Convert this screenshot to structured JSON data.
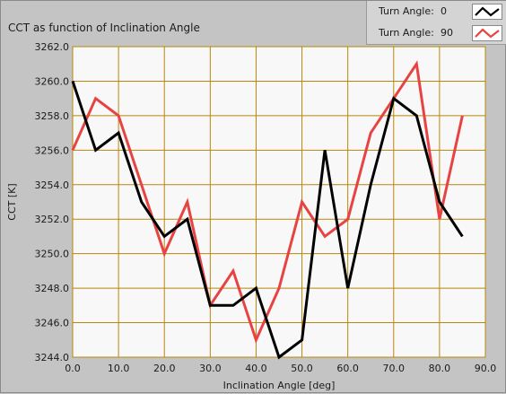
{
  "chart_data": {
    "type": "line",
    "title": "CCT as function of Inclination Angle",
    "xlabel": "Inclination Angle [deg]",
    "ylabel": "CCT [K]",
    "xlim": [
      0,
      90
    ],
    "ylim": [
      3244,
      3262
    ],
    "xticks": [
      "0.0",
      "10.0",
      "20.0",
      "30.0",
      "40.0",
      "50.0",
      "60.0",
      "70.0",
      "80.0",
      "90.0"
    ],
    "yticks": [
      "3244.0",
      "3246.0",
      "3248.0",
      "3250.0",
      "3252.0",
      "3254.0",
      "3256.0",
      "3258.0",
      "3260.0",
      "3262.0"
    ],
    "x": [
      0,
      5,
      10,
      15,
      20,
      25,
      30,
      35,
      40,
      45,
      50,
      55,
      60,
      65,
      70,
      75,
      80,
      85
    ],
    "series": [
      {
        "name": "Turn Angle: 0",
        "color": "#000000",
        "values": [
          3260,
          3256,
          3257,
          3253,
          3251,
          3252,
          3247,
          3247,
          3248,
          3244,
          3245,
          3256,
          3248,
          3254,
          3259,
          3258,
          3253,
          3251
        ]
      },
      {
        "name": "Turn Angle: 90",
        "color": "#e84343",
        "values": [
          3256,
          3259,
          3258,
          3254,
          3250,
          3253,
          3247,
          3249,
          3245,
          3248,
          3253,
          3251,
          3252,
          3257,
          3259,
          3261,
          3252,
          3258
        ]
      }
    ],
    "grid": true,
    "grid_color": "#b8860b",
    "plot_background": "#f8f8f8",
    "legend_position": "top-right"
  },
  "legend": {
    "items": [
      {
        "label": "Turn Angle:",
        "value": "0"
      },
      {
        "label": "Turn Angle:",
        "value": "90"
      }
    ]
  }
}
